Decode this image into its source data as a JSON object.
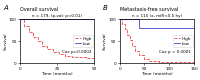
{
  "chart_data": [
    {
      "type": "step",
      "panel_label": "A",
      "title": "Overall survival",
      "subtitle": "n = 179, (p-val: p<0.01)",
      "x_label": "Time (months)",
      "y_label": "Survival",
      "annotations": [
        "Cox p=0.0002"
      ],
      "xlim": [
        0,
        50
      ],
      "ylim": [
        0,
        100
      ],
      "xticks": [
        0,
        25,
        50
      ],
      "yticks": [
        0,
        50,
        100
      ],
      "legend": "center right",
      "series": [
        {
          "name": "High",
          "color": "#EE4444",
          "line_style": "dashed",
          "x": [
            0,
            3,
            6,
            9,
            12,
            15,
            18,
            22,
            26,
            30,
            35,
            40,
            45,
            50
          ],
          "values": [
            100,
            85,
            72,
            60,
            50,
            40,
            32,
            25,
            20,
            17,
            15,
            13,
            12,
            12
          ]
        },
        {
          "name": "Low",
          "color": "#4444CC",
          "line_style": "solid",
          "x": [
            0,
            50
          ],
          "values": [
            100,
            100
          ]
        }
      ]
    },
    {
      "type": "step",
      "panel_label": "B",
      "title": "Metastasis-free survival",
      "subtitle": "n = 115 (x, miR<0.5 hy)",
      "x_label": "Time (months)",
      "y_label": "Survival",
      "annotations": [
        "Cox p < 0.0001"
      ],
      "xlim": [
        0,
        150
      ],
      "ylim": [
        0,
        100
      ],
      "xticks": [
        0,
        50,
        100,
        150
      ],
      "yticks": [
        0,
        50,
        100
      ],
      "legend": "center right",
      "series": [
        {
          "name": "High",
          "color": "#EE4444",
          "line_style": "dashed",
          "x": [
            0,
            5,
            10,
            15,
            20,
            25,
            30,
            40,
            50,
            60,
            70,
            80,
            90,
            100,
            150
          ],
          "values": [
            100,
            90,
            78,
            65,
            52,
            40,
            28,
            18,
            10,
            6,
            4,
            2,
            2,
            2,
            2
          ]
        },
        {
          "name": "Low",
          "color": "#4444CC",
          "line_style": "solid",
          "x": [
            0,
            30,
            40,
            150
          ],
          "values": [
            100,
            100,
            80,
            80
          ]
        }
      ]
    }
  ]
}
